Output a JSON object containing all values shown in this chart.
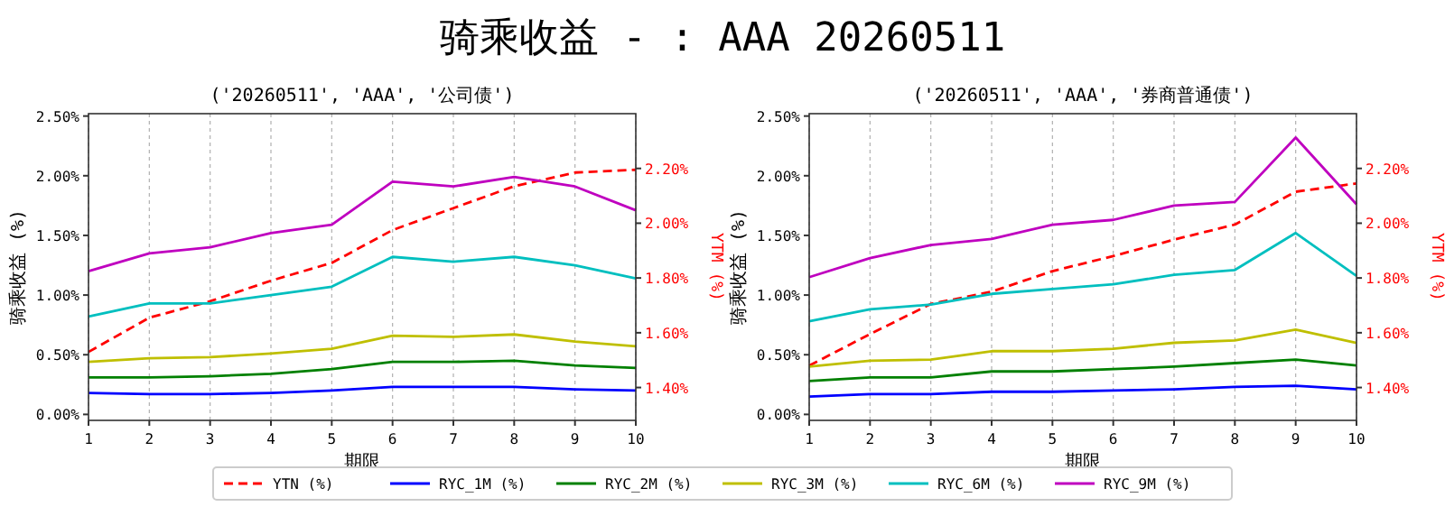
{
  "chart_data": [
    {
      "type": "line",
      "title": "骑乘收益 - : AAA 20260511",
      "subtitle": "('20260511', 'AAA', '公司债')",
      "xlabel": "期限",
      "ylabel": "骑乘收益 (%)",
      "y2label": "YTM (%)",
      "x": [
        1,
        2,
        3,
        4,
        5,
        6,
        7,
        8,
        9,
        10
      ],
      "xlim": [
        1,
        10
      ],
      "xticks": [
        1,
        2,
        3,
        4,
        5,
        6,
        7,
        8,
        9,
        10
      ],
      "ylim": [
        -0.05,
        2.52
      ],
      "yticks": [
        {
          "value": 0,
          "label": "0.00%"
        },
        {
          "value": 0.5,
          "label": "0.50%"
        },
        {
          "value": 1,
          "label": "1.00%"
        },
        {
          "value": 1.5,
          "label": "1.50%"
        },
        {
          "value": 2,
          "label": "2.00%"
        },
        {
          "value": 2.5,
          "label": "2.50%"
        }
      ],
      "y2lim": [
        1.28,
        2.4
      ],
      "y2ticks": [
        {
          "value": 1.4,
          "label": "1.40%"
        },
        {
          "value": 1.6,
          "label": "1.60%"
        },
        {
          "value": 1.8,
          "label": "1.80%"
        },
        {
          "value": 2,
          "label": "2.00%"
        },
        {
          "value": 2.2,
          "label": "2.20%"
        }
      ],
      "grid": "x",
      "legend": "bottom",
      "series": [
        {
          "name": "YTN (%)",
          "color": "#ff0000",
          "axis": "y2",
          "line_style": "dashed",
          "values": [
            1.53,
            1.655,
            1.715,
            1.79,
            1.855,
            1.975,
            2.055,
            2.135,
            2.185,
            2.195
          ]
        },
        {
          "name": "RYC_1M (%)",
          "color": "#0000ff",
          "values": [
            0.18,
            0.17,
            0.17,
            0.18,
            0.2,
            0.23,
            0.23,
            0.23,
            0.21,
            0.2
          ]
        },
        {
          "name": "RYC_2M (%)",
          "color": "#008000",
          "values": [
            0.31,
            0.31,
            0.32,
            0.34,
            0.38,
            0.44,
            0.44,
            0.45,
            0.41,
            0.39
          ]
        },
        {
          "name": "RYC_3M (%)",
          "color": "#bfbf00",
          "values": [
            0.44,
            0.47,
            0.48,
            0.51,
            0.55,
            0.66,
            0.65,
            0.67,
            0.61,
            0.57
          ]
        },
        {
          "name": "RYC_6M (%)",
          "color": "#00bfbf",
          "values": [
            0.82,
            0.93,
            0.93,
            1.0,
            1.07,
            1.32,
            1.28,
            1.32,
            1.25,
            1.14
          ]
        },
        {
          "name": "RYC_9M (%)",
          "color": "#bf00bf",
          "values": [
            1.2,
            1.35,
            1.4,
            1.52,
            1.59,
            1.95,
            1.91,
            1.99,
            1.91,
            1.71
          ]
        }
      ]
    },
    {
      "type": "line",
      "subtitle": "('20260511', 'AAA', '券商普通债')",
      "xlabel": "期限",
      "ylabel": "骑乘收益 (%)",
      "y2label": "YTM (%)",
      "x": [
        1,
        2,
        3,
        4,
        5,
        6,
        7,
        8,
        9,
        10
      ],
      "xlim": [
        1,
        10
      ],
      "xticks": [
        1,
        2,
        3,
        4,
        5,
        6,
        7,
        8,
        9,
        10
      ],
      "ylim": [
        -0.05,
        2.52
      ],
      "yticks": [
        {
          "value": 0,
          "label": "0.00%"
        },
        {
          "value": 0.5,
          "label": "0.50%"
        },
        {
          "value": 1,
          "label": "1.00%"
        },
        {
          "value": 1.5,
          "label": "1.50%"
        },
        {
          "value": 2,
          "label": "2.00%"
        },
        {
          "value": 2.5,
          "label": "2.50%"
        }
      ],
      "y2lim": [
        1.28,
        2.4
      ],
      "y2ticks": [
        {
          "value": 1.4,
          "label": "1.40%"
        },
        {
          "value": 1.6,
          "label": "1.60%"
        },
        {
          "value": 1.8,
          "label": "1.80%"
        },
        {
          "value": 2,
          "label": "2.00%"
        },
        {
          "value": 2.2,
          "label": "2.20%"
        }
      ],
      "grid": "x",
      "series": [
        {
          "color": "#ff0000",
          "axis": "y2",
          "line_style": "dashed",
          "values": [
            1.48,
            1.595,
            1.705,
            1.75,
            1.825,
            1.88,
            1.94,
            1.995,
            2.115,
            2.145
          ]
        },
        {
          "color": "#0000ff",
          "values": [
            0.15,
            0.17,
            0.17,
            0.19,
            0.19,
            0.2,
            0.21,
            0.23,
            0.24,
            0.21
          ]
        },
        {
          "color": "#008000",
          "values": [
            0.28,
            0.31,
            0.31,
            0.36,
            0.36,
            0.38,
            0.4,
            0.43,
            0.46,
            0.41
          ]
        },
        {
          "color": "#bfbf00",
          "values": [
            0.4,
            0.45,
            0.46,
            0.53,
            0.53,
            0.55,
            0.6,
            0.62,
            0.71,
            0.6
          ]
        },
        {
          "color": "#00bfbf",
          "values": [
            0.78,
            0.88,
            0.92,
            1.01,
            1.05,
            1.09,
            1.17,
            1.21,
            1.52,
            1.16
          ]
        },
        {
          "color": "#bf00bf",
          "values": [
            1.15,
            1.31,
            1.42,
            1.47,
            1.59,
            1.63,
            1.75,
            1.78,
            2.32,
            1.76
          ]
        }
      ]
    }
  ]
}
